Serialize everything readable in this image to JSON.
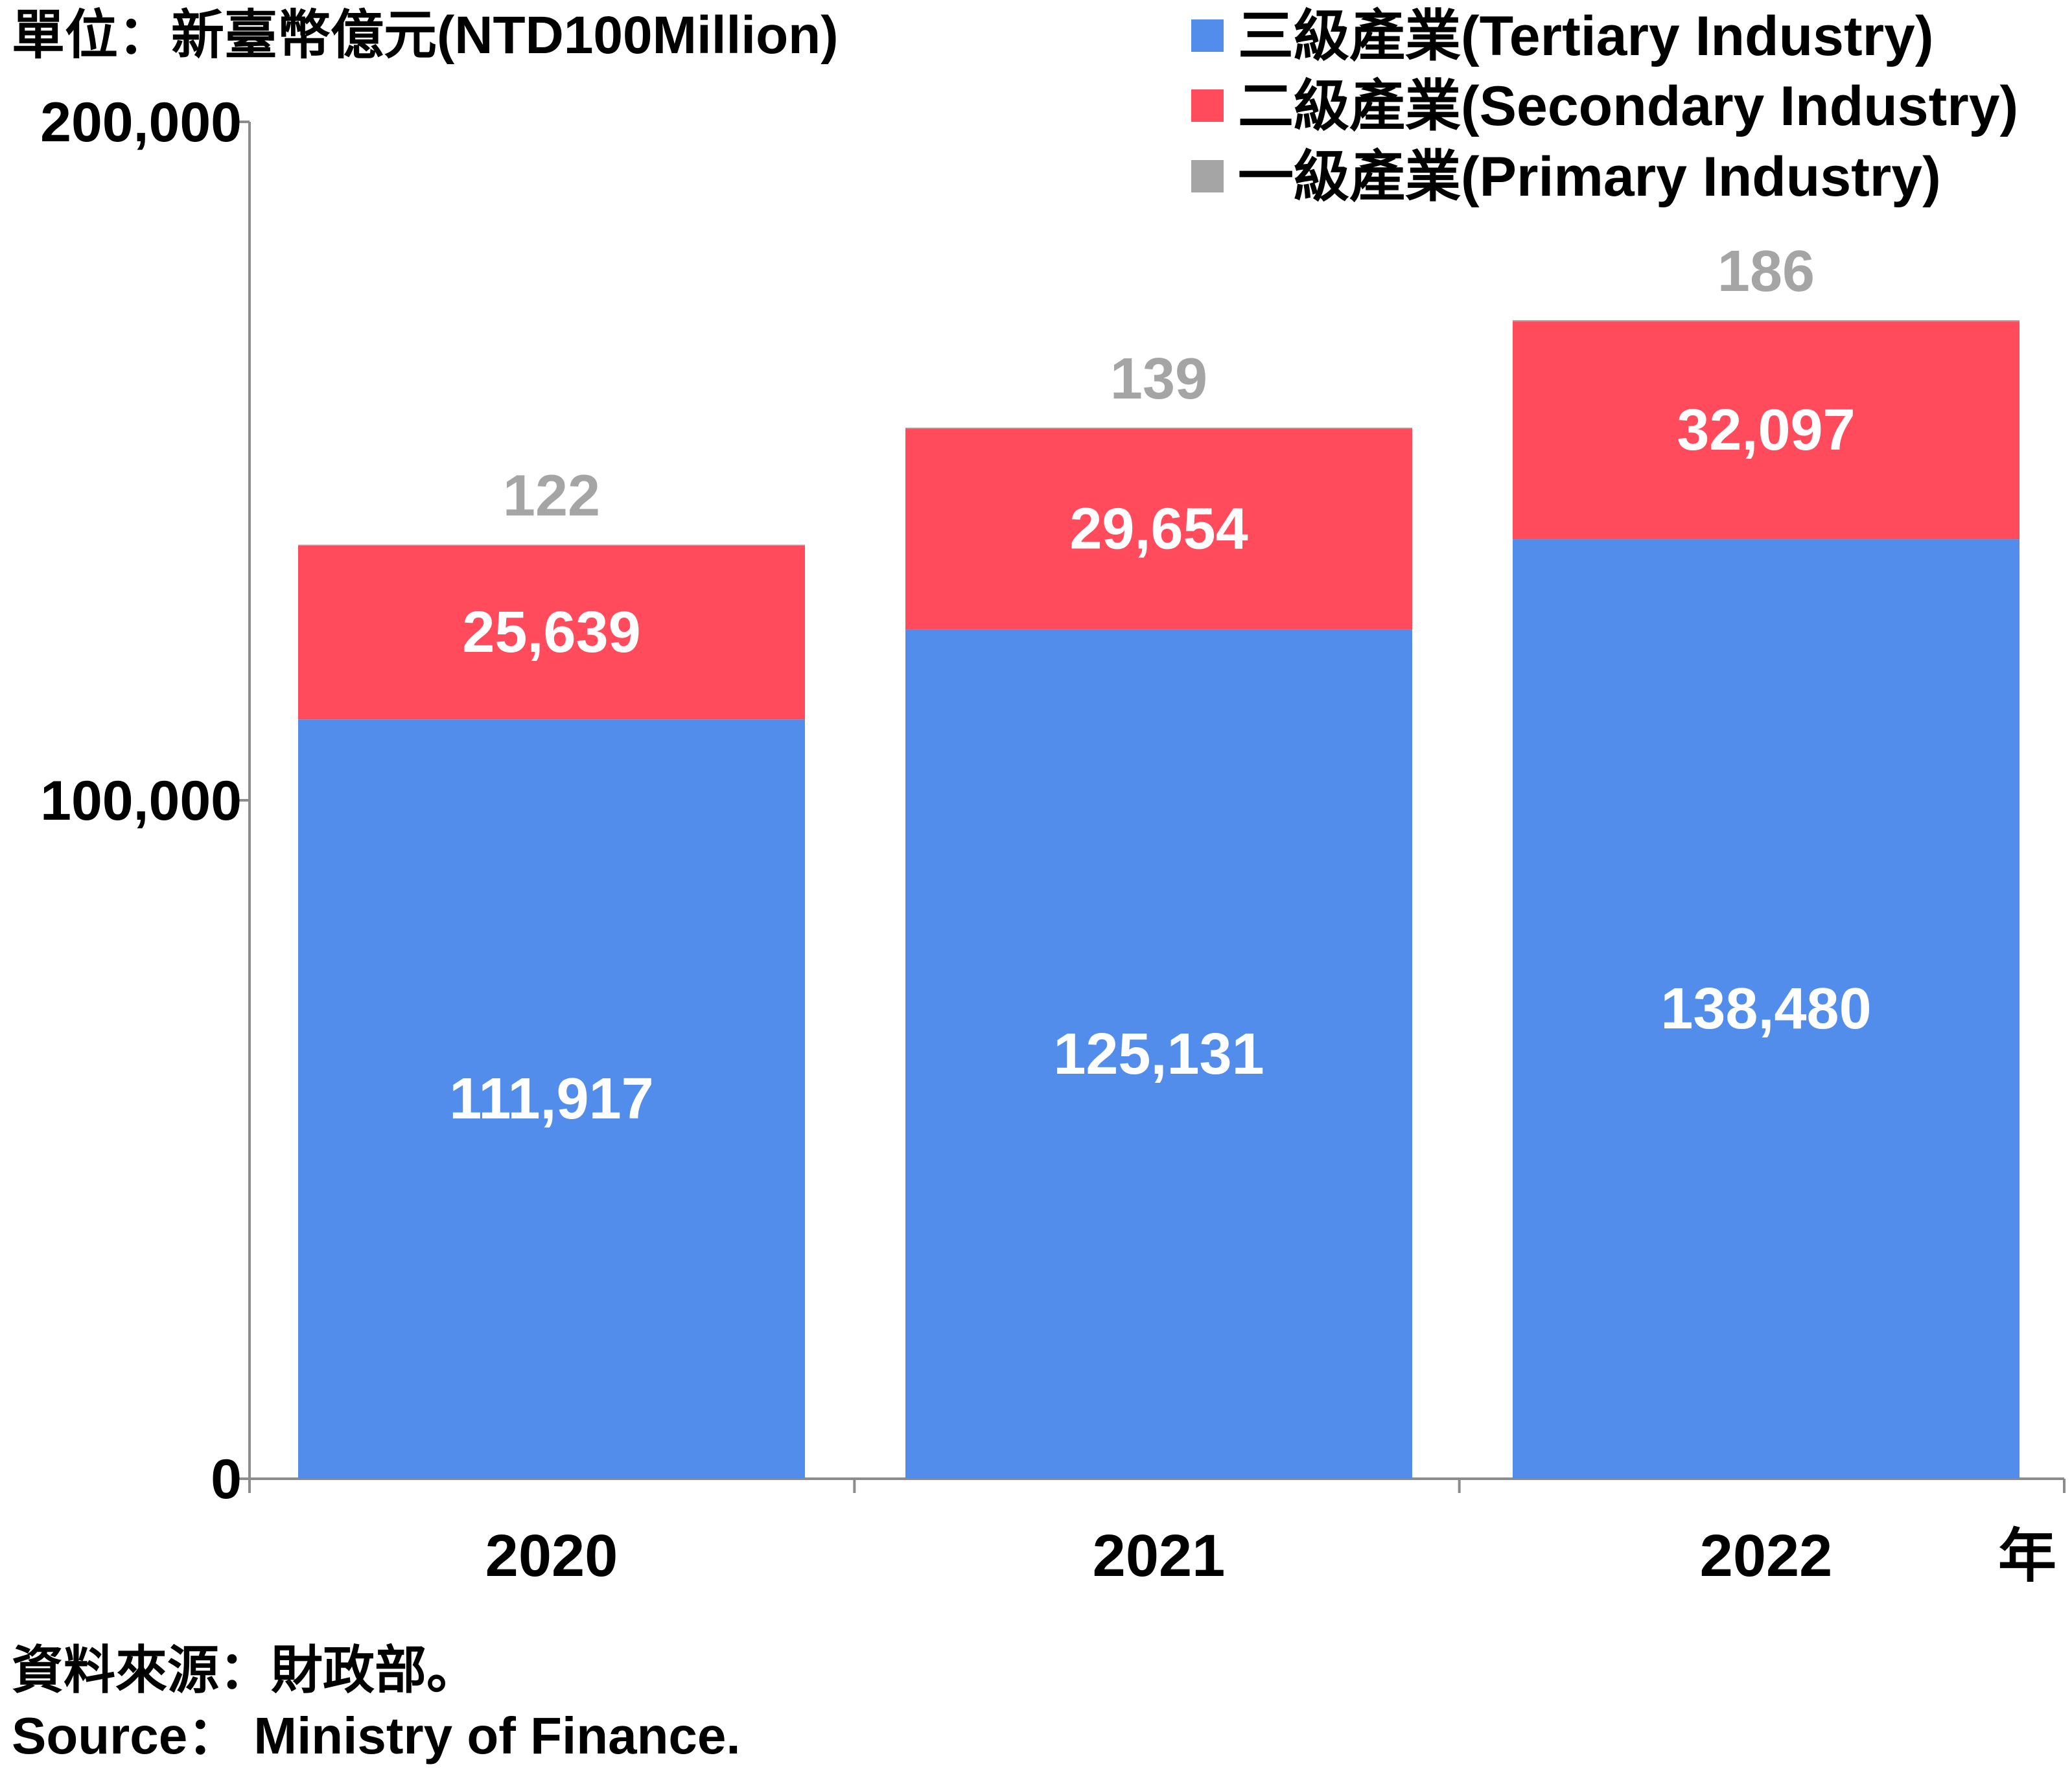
{
  "unit_label": "單位：新臺幣億元(NTD100Million)",
  "source_zh": "資料來源：財政部。",
  "source_en": "Source： Ministry of Finance.",
  "x_unit": "年",
  "colors": {
    "tertiary": "#528DEB",
    "secondary": "#FF4B5C",
    "primary": "#A5A5A5",
    "axis": "#8C8C8C",
    "text": "#000000",
    "label_inside": "#FFFFFF"
  },
  "chart_data": {
    "type": "bar",
    "stacked": true,
    "categories": [
      "2020",
      "2021",
      "2022"
    ],
    "series": [
      {
        "name": "三級產業(Tertiary Industry)",
        "color_key": "tertiary",
        "values": [
          111917,
          125131,
          138480
        ],
        "labels": [
          "111,917",
          "125,131",
          "138,480"
        ]
      },
      {
        "name": "二級產業(Secondary Industry)",
        "color_key": "secondary",
        "values": [
          25639,
          29654,
          32097
        ],
        "labels": [
          "25,639",
          "29,654",
          "32,097"
        ]
      },
      {
        "name": "一級產業(Primary Industry)",
        "color_key": "primary",
        "values": [
          122,
          139,
          186
        ],
        "labels": [
          "122",
          "139",
          "186"
        ]
      }
    ],
    "ylim": [
      0,
      200000
    ],
    "yticks": [
      0,
      100000,
      200000
    ],
    "ytick_labels": [
      "0",
      "100,000",
      "200,000"
    ],
    "legend_position": "top-right",
    "grid": false
  }
}
